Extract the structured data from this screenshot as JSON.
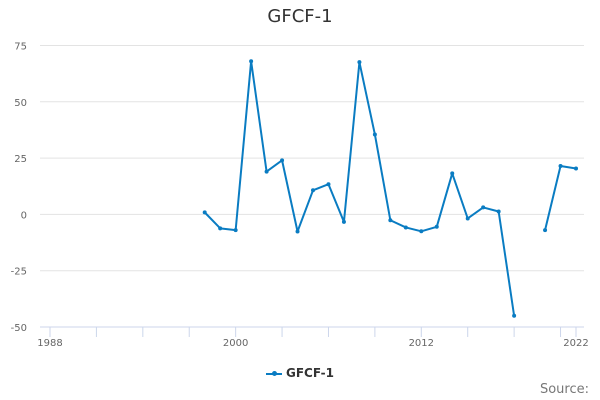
{
  "chart_data": {
    "type": "line",
    "title": "GFCF-1",
    "xlabel": "",
    "ylabel": "",
    "xlim": [
      1988,
      2022
    ],
    "ylim": [
      -50,
      75
    ],
    "x_ticks": [
      "1988",
      "2000",
      "2012",
      "2022"
    ],
    "y_ticks": [
      "75",
      "50",
      "25",
      "0",
      "-25",
      "-50"
    ],
    "grid": true,
    "legend": "bottom-center",
    "color": "#0a7cc2",
    "series": [
      {
        "name": "GFCF-1",
        "x": [
          1998,
          1999,
          2000,
          2001,
          2002,
          2003,
          2004,
          2005,
          2006,
          2007,
          2008,
          2009,
          2010,
          2011,
          2012,
          2013,
          2014,
          2015,
          2016,
          2017,
          2018,
          2019,
          2020,
          2021,
          2022
        ],
        "values": [
          0.9,
          -6.2,
          -7.0,
          68.0,
          19.0,
          24.0,
          -7.6,
          10.7,
          13.4,
          -3.3,
          67.6,
          35.5,
          -2.6,
          -5.8,
          -7.5,
          -5.5,
          18.2,
          -1.8,
          3.1,
          1.3,
          -45.0,
          null,
          -7.0,
          21.5,
          20.4
        ]
      }
    ]
  },
  "source_label": "Source:"
}
